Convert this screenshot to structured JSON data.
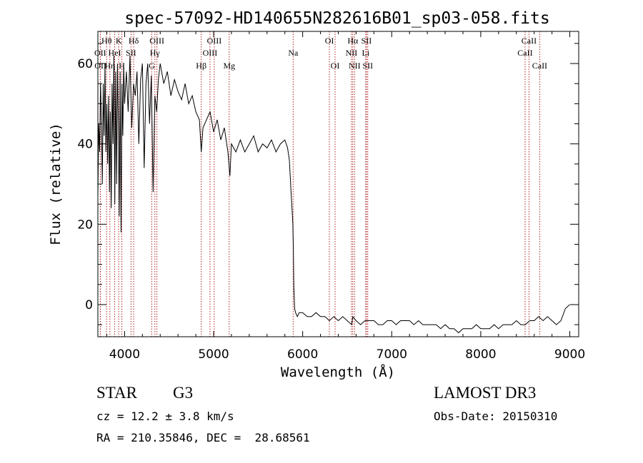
{
  "chart_data": {
    "type": "line",
    "title": "spec-57092-HD140655N282616B01_sp03-058.fits",
    "xlabel": "Wavelength (Å)",
    "ylabel": "Flux (relative)",
    "xlim": [
      3700,
      9100
    ],
    "ylim": [
      -8,
      68
    ],
    "xticks": [
      4000,
      5000,
      6000,
      7000,
      8000,
      9000
    ],
    "yticks": [
      0,
      20,
      40,
      60
    ],
    "xtick_labels": [
      "4000",
      "5000",
      "6000",
      "7000",
      "8000",
      "9000"
    ],
    "ytick_labels": [
      "0",
      "20",
      "40",
      "60"
    ],
    "line_color": "#000000",
    "marker_color": "#b22222",
    "series": [
      {
        "x": [
          3700,
          3710,
          3720,
          3730,
          3740,
          3750,
          3760,
          3770,
          3780,
          3790,
          3800,
          3810,
          3820,
          3830,
          3840,
          3850,
          3860,
          3870,
          3880,
          3890,
          3900,
          3910,
          3920,
          3930,
          3940,
          3950,
          3960,
          3970,
          3980,
          3990,
          4000,
          4020,
          4040,
          4060,
          4080,
          4100,
          4120,
          4140,
          4160,
          4180,
          4200,
          4220,
          4240,
          4260,
          4280,
          4300,
          4320,
          4340,
          4360,
          4380,
          4400,
          4440,
          4480,
          4520,
          4560,
          4600,
          4640,
          4680,
          4720,
          4760,
          4800,
          4840,
          4861,
          4880,
          4920,
          4960,
          5000,
          5040,
          5080,
          5120,
          5160,
          5183,
          5200,
          5250,
          5300,
          5350,
          5400,
          5450,
          5500,
          5550,
          5600,
          5650,
          5700,
          5750,
          5800,
          5830,
          5850,
          5860,
          5870,
          5880,
          5890,
          5895,
          5900,
          5910,
          5920,
          5940,
          5960,
          6000,
          6050,
          6100,
          6150,
          6200,
          6250,
          6300,
          6350,
          6400,
          6450,
          6500,
          6550,
          6563,
          6600,
          6650,
          6700,
          6750,
          6800,
          6850,
          6900,
          6950,
          7000,
          7050,
          7100,
          7150,
          7200,
          7250,
          7300,
          7350,
          7400,
          7450,
          7500,
          7550,
          7600,
          7650,
          7700,
          7750,
          7800,
          7850,
          7900,
          7950,
          8000,
          8050,
          8100,
          8150,
          8200,
          8250,
          8300,
          8350,
          8400,
          8450,
          8500,
          8550,
          8600,
          8650,
          8700,
          8750,
          8800,
          8850,
          8900,
          8950,
          9000
        ],
        "y": [
          27,
          45,
          38,
          55,
          45,
          30,
          55,
          42,
          60,
          38,
          50,
          35,
          52,
          28,
          48,
          24,
          55,
          40,
          62,
          25,
          58,
          30,
          60,
          45,
          22,
          58,
          18,
          55,
          42,
          60,
          50,
          58,
          48,
          62,
          44,
          55,
          52,
          58,
          40,
          56,
          60,
          34,
          55,
          60,
          45,
          57,
          28,
          52,
          48,
          56,
          60,
          55,
          58,
          52,
          56,
          53,
          51,
          55,
          50,
          52,
          48,
          46,
          38,
          44,
          46,
          48,
          43,
          46,
          41,
          44,
          38,
          32,
          40,
          38,
          41,
          38,
          40,
          42,
          38,
          40,
          39,
          41,
          38,
          40,
          41,
          39,
          36,
          32,
          28,
          24,
          20,
          14,
          5,
          -1,
          -2,
          -3,
          -2,
          -2,
          -3,
          -3,
          -2,
          -3,
          -3,
          -4,
          -3,
          -4,
          -3,
          -4,
          -5,
          -3,
          -4,
          -5,
          -4,
          -4,
          -4,
          -5,
          -5,
          -4,
          -4,
          -5,
          -4,
          -4,
          -4,
          -5,
          -4,
          -5,
          -5,
          -5,
          -5,
          -6,
          -5,
          -6,
          -6,
          -7,
          -6,
          -6,
          -6,
          -5,
          -6,
          -6,
          -6,
          -5,
          -6,
          -5,
          -5,
          -5,
          -4,
          -5,
          -5,
          -4,
          -4,
          -3,
          -4,
          -3,
          -4,
          -5,
          -4,
          -1,
          0
        ]
      }
    ],
    "line_markers": [
      {
        "label": "Hθ",
        "wavelength": 3798,
        "row": 0
      },
      {
        "label": "OII",
        "wavelength": 3727,
        "row": 1
      },
      {
        "label": "OII",
        "wavelength": 3729,
        "row": 2
      },
      {
        "label": "Hη",
        "wavelength": 3835,
        "row": 2
      },
      {
        "label": "K",
        "wavelength": 3934,
        "row": 0
      },
      {
        "label": "HeI",
        "wavelength": 3889,
        "row": 1
      },
      {
        "label": "H",
        "wavelength": 3969,
        "row": 2
      },
      {
        "label": "SII",
        "wavelength": 4072,
        "row": 1
      },
      {
        "label": "Hδ",
        "wavelength": 4102,
        "row": 0
      },
      {
        "label": "OIII",
        "wavelength": 4363,
        "row": 0
      },
      {
        "label": "Hγ",
        "wavelength": 4340,
        "row": 1
      },
      {
        "label": "G",
        "wavelength": 4305,
        "row": 2
      },
      {
        "label": "OIII",
        "wavelength": 5007,
        "row": 0
      },
      {
        "label": "OIII",
        "wavelength": 4959,
        "row": 1
      },
      {
        "label": "Hβ",
        "wavelength": 4861,
        "row": 2
      },
      {
        "label": "Mg",
        "wavelength": 5175,
        "row": 2
      },
      {
        "label": "Na",
        "wavelength": 5893,
        "row": 1
      },
      {
        "label": "OI",
        "wavelength": 6300,
        "row": 0
      },
      {
        "label": "OI",
        "wavelength": 6364,
        "row": 2
      },
      {
        "label": "Hα",
        "wavelength": 6563,
        "row": 0
      },
      {
        "label": "NII",
        "wavelength": 6548,
        "row": 1
      },
      {
        "label": "NII",
        "wavelength": 6583,
        "row": 2
      },
      {
        "label": "SII",
        "wavelength": 6716,
        "row": 0
      },
      {
        "label": "Li",
        "wavelength": 6708,
        "row": 1
      },
      {
        "label": "SII",
        "wavelength": 6731,
        "row": 2
      },
      {
        "label": "CaII",
        "wavelength": 8542,
        "row": 0
      },
      {
        "label": "CaII",
        "wavelength": 8498,
        "row": 1
      },
      {
        "label": "CaII",
        "wavelength": 8662,
        "row": 2
      }
    ]
  },
  "info": {
    "object_class": "STAR",
    "subclass": "G3",
    "survey": "LAMOST DR3",
    "cz": "cz = 12.2 ± 3.8 km/s",
    "obs_date": "Obs-Date: 20150310",
    "coords": "RA = 210.35846, DEC =  28.68561"
  }
}
